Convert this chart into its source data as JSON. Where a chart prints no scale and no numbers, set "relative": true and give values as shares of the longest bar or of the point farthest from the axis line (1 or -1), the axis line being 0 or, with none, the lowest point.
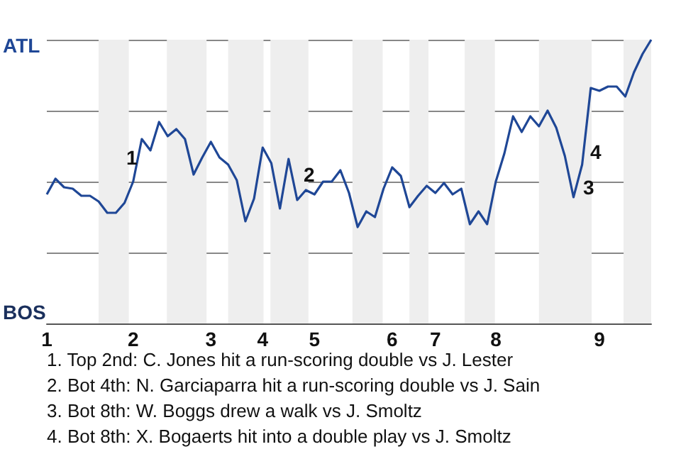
{
  "chart_data": {
    "type": "line",
    "color": "#1f4796",
    "relative": true,
    "categories": [
      "1",
      null,
      null,
      null,
      null,
      null,
      null,
      null,
      null,
      null,
      "2",
      null,
      null,
      null,
      null,
      null,
      null,
      null,
      null,
      "3",
      null,
      null,
      null,
      null,
      null,
      "4",
      null,
      null,
      null,
      null,
      null,
      "5",
      null,
      null,
      null,
      null,
      null,
      null,
      null,
      null,
      "6",
      null,
      null,
      null,
      null,
      "7",
      null,
      null,
      null,
      null,
      null,
      null,
      "8",
      null,
      null,
      null,
      null,
      null,
      null,
      null,
      null,
      null,
      null,
      null,
      "9",
      null,
      null,
      null,
      null,
      null,
      null
    ],
    "values": [
      0.455,
      0.51,
      0.48,
      0.475,
      0.45,
      0.45,
      0.43,
      0.39,
      0.39,
      0.425,
      0.5,
      0.65,
      0.61,
      0.71,
      0.66,
      0.685,
      0.65,
      0.525,
      0.585,
      0.64,
      0.585,
      0.56,
      0.505,
      0.36,
      0.44,
      0.62,
      0.565,
      0.405,
      0.58,
      0.435,
      0.47,
      0.455,
      0.5,
      0.5,
      0.54,
      0.46,
      0.34,
      0.395,
      0.375,
      0.475,
      0.55,
      0.52,
      0.41,
      0.45,
      0.485,
      0.46,
      0.495,
      0.455,
      0.475,
      0.35,
      0.395,
      0.35,
      0.5,
      0.6,
      0.73,
      0.675,
      0.73,
      0.695,
      0.75,
      0.69,
      0.59,
      0.445,
      0.56,
      0.83,
      0.82,
      0.835,
      0.835,
      0.8,
      0.885,
      0.95,
      1
    ],
    "grid": "y",
    "marker": "none",
    "line_style": "solid",
    "annotations": [
      "ATL",
      "BOS",
      "1",
      "2",
      "3",
      "4",
      "1. Top 2nd: C. Jones hit a run-scoring double vs J. Lester",
      "2. Bot 4th: N. Garciaparra hit a run-scoring double vs J. Sain",
      "3. Bot 8th: W. Boggs drew a walk vs J. Smoltz",
      "4. Bot 8th: X. Bogaerts hit into a double play vs J. Smoltz"
    ]
  }
}
